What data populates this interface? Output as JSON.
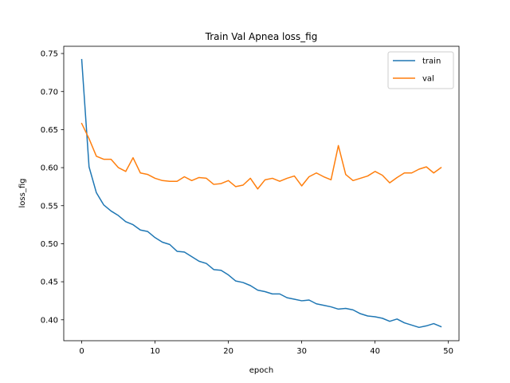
{
  "chart_data": {
    "type": "line",
    "title": "Train Val Apnea loss_fig",
    "xlabel": "epoch",
    "ylabel": "loss_fig",
    "xlim": [
      -2.45,
      51.45
    ],
    "ylim": [
      0.3725,
      0.7595
    ],
    "xticks": [
      0,
      10,
      20,
      30,
      40,
      50
    ],
    "xtick_labels": [
      "0",
      "10",
      "20",
      "30",
      "40",
      "50"
    ],
    "yticks": [
      0.4,
      0.45,
      0.5,
      0.55,
      0.6,
      0.65,
      0.7,
      0.75
    ],
    "ytick_labels": [
      "0.40",
      "0.45",
      "0.50",
      "0.55",
      "0.60",
      "0.65",
      "0.70",
      "0.75"
    ],
    "grid": false,
    "legend_position": "top-right",
    "x": [
      0,
      1,
      2,
      3,
      4,
      5,
      6,
      7,
      8,
      9,
      10,
      11,
      12,
      13,
      14,
      15,
      16,
      17,
      18,
      19,
      20,
      21,
      22,
      23,
      24,
      25,
      26,
      27,
      28,
      29,
      30,
      31,
      32,
      33,
      34,
      35,
      36,
      37,
      38,
      39,
      40,
      41,
      42,
      43,
      44,
      45,
      46,
      47,
      48,
      49
    ],
    "series": [
      {
        "name": "train",
        "color": "#1f77b4",
        "values": [
          0.742,
          0.601,
          0.567,
          0.551,
          0.543,
          0.537,
          0.529,
          0.525,
          0.518,
          0.516,
          0.508,
          0.502,
          0.499,
          0.49,
          0.489,
          0.483,
          0.477,
          0.474,
          0.466,
          0.465,
          0.459,
          0.451,
          0.449,
          0.445,
          0.439,
          0.437,
          0.434,
          0.434,
          0.429,
          0.427,
          0.425,
          0.426,
          0.421,
          0.419,
          0.417,
          0.414,
          0.415,
          0.413,
          0.408,
          0.405,
          0.404,
          0.402,
          0.398,
          0.401,
          0.396,
          0.393,
          0.39,
          0.392,
          0.395,
          0.391
        ]
      },
      {
        "name": "val",
        "color": "#ff7f0e",
        "values": [
          0.658,
          0.638,
          0.615,
          0.611,
          0.611,
          0.6,
          0.595,
          0.613,
          0.593,
          0.591,
          0.586,
          0.583,
          0.582,
          0.582,
          0.588,
          0.583,
          0.587,
          0.586,
          0.578,
          0.579,
          0.583,
          0.575,
          0.577,
          0.586,
          0.572,
          0.584,
          0.586,
          0.582,
          0.586,
          0.589,
          0.576,
          0.588,
          0.593,
          0.588,
          0.584,
          0.629,
          0.591,
          0.583,
          0.586,
          0.589,
          0.595,
          0.59,
          0.58,
          0.587,
          0.593,
          0.593,
          0.598,
          0.601,
          0.593,
          0.6
        ]
      }
    ]
  }
}
